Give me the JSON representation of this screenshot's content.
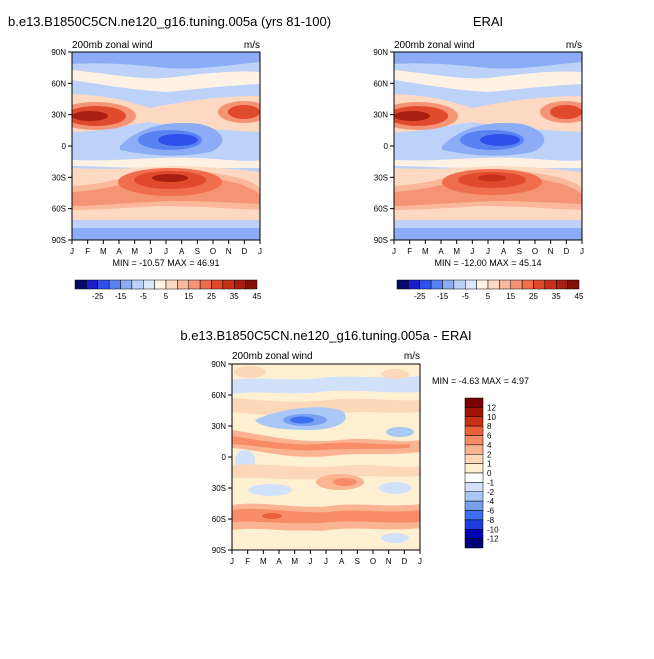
{
  "chart_data": [
    {
      "type": "heatmap",
      "title": "b.e13.B1850C5CN.ne120_g16.tuning.005a (yrs 81-100)",
      "subtitle_left": "200mb zonal wind",
      "subtitle_right": "m/s",
      "x_tick_labels": [
        "J",
        "F",
        "M",
        "A",
        "M",
        "J",
        "J",
        "A",
        "S",
        "O",
        "N",
        "D",
        "J"
      ],
      "y_tick_labels": [
        "90N",
        "60N",
        "30N",
        "0",
        "30S",
        "60S",
        "90S"
      ],
      "y_ticks": [
        90,
        60,
        30,
        0,
        -30,
        -60,
        -90
      ],
      "ylim": [
        -90,
        90
      ],
      "xlim": [
        0,
        12
      ],
      "stats": "MIN = -10.57  MAX =  46.91",
      "contour_levels": [
        -30,
        -25,
        -20,
        -15,
        -10,
        -5,
        0,
        5,
        10,
        15,
        20,
        25,
        30,
        35,
        40,
        45
      ],
      "colorbar_labels": [
        "-25",
        "-15",
        "-5",
        "5",
        "15",
        "25",
        "35",
        "45"
      ]
    },
    {
      "type": "heatmap",
      "title": "ERAI",
      "subtitle_left": "200mb zonal wind",
      "subtitle_right": "m/s",
      "x_tick_labels": [
        "J",
        "F",
        "M",
        "A",
        "M",
        "J",
        "J",
        "A",
        "S",
        "O",
        "N",
        "D",
        "J"
      ],
      "y_tick_labels": [
        "90N",
        "60N",
        "30N",
        "0",
        "30S",
        "60S",
        "90S"
      ],
      "y_ticks": [
        90,
        60,
        30,
        0,
        -30,
        -60,
        -90
      ],
      "ylim": [
        -90,
        90
      ],
      "xlim": [
        0,
        12
      ],
      "stats": "MIN = -12.00  MAX =  45.14",
      "contour_levels": [
        -30,
        -25,
        -20,
        -15,
        -10,
        -5,
        0,
        5,
        10,
        15,
        20,
        25,
        30,
        35,
        40,
        45
      ],
      "colorbar_labels": [
        "-25",
        "-15",
        "-5",
        "5",
        "15",
        "25",
        "35",
        "45"
      ]
    },
    {
      "type": "heatmap",
      "title": "b.e13.B1850C5CN.ne120_g16.tuning.005a - ERAI",
      "subtitle_left": "200mb zonal wind",
      "subtitle_right": "m/s",
      "x_tick_labels": [
        "J",
        "F",
        "M",
        "A",
        "M",
        "J",
        "J",
        "A",
        "S",
        "O",
        "N",
        "D",
        "J"
      ],
      "y_tick_labels": [
        "90N",
        "60N",
        "30N",
        "0",
        "30S",
        "60S",
        "90S"
      ],
      "y_ticks": [
        90,
        60,
        30,
        0,
        -30,
        -60,
        -90
      ],
      "ylim": [
        -90,
        90
      ],
      "xlim": [
        0,
        12
      ],
      "stats": "MIN =  -4.63  MAX =   4.97",
      "contour_levels": [
        -12,
        -10,
        -8,
        -6,
        -4,
        -2,
        -1,
        0,
        1,
        2,
        4,
        6,
        8,
        10,
        12
      ],
      "colorbar_labels": [
        "12",
        "10",
        "8",
        "6",
        "4",
        "2",
        "1",
        "0",
        "-1",
        "-2",
        "-4",
        "-6",
        "-8",
        "-10",
        "-12"
      ]
    }
  ],
  "palettes": {
    "abs": [
      "#08086b",
      "#1d1dc8",
      "#3050ec",
      "#5a82f2",
      "#8cadf5",
      "#bcd2f8",
      "#dce8fb",
      "#fff2e4",
      "#fcd9c0",
      "#f9b89a",
      "#f59474",
      "#f06d4e",
      "#e04a2c",
      "#c9301a",
      "#a81e10",
      "#821008"
    ],
    "diff": [
      "#000078",
      "#0000b4",
      "#1e3cdc",
      "#3c6ef0",
      "#78a0f0",
      "#aac8f5",
      "#d2e1fa",
      "#ffffff",
      "#fff0d2",
      "#fdd7b9",
      "#fbb491",
      "#f88c68",
      "#e8603c",
      "#c83214",
      "#a01406",
      "#780000"
    ]
  }
}
